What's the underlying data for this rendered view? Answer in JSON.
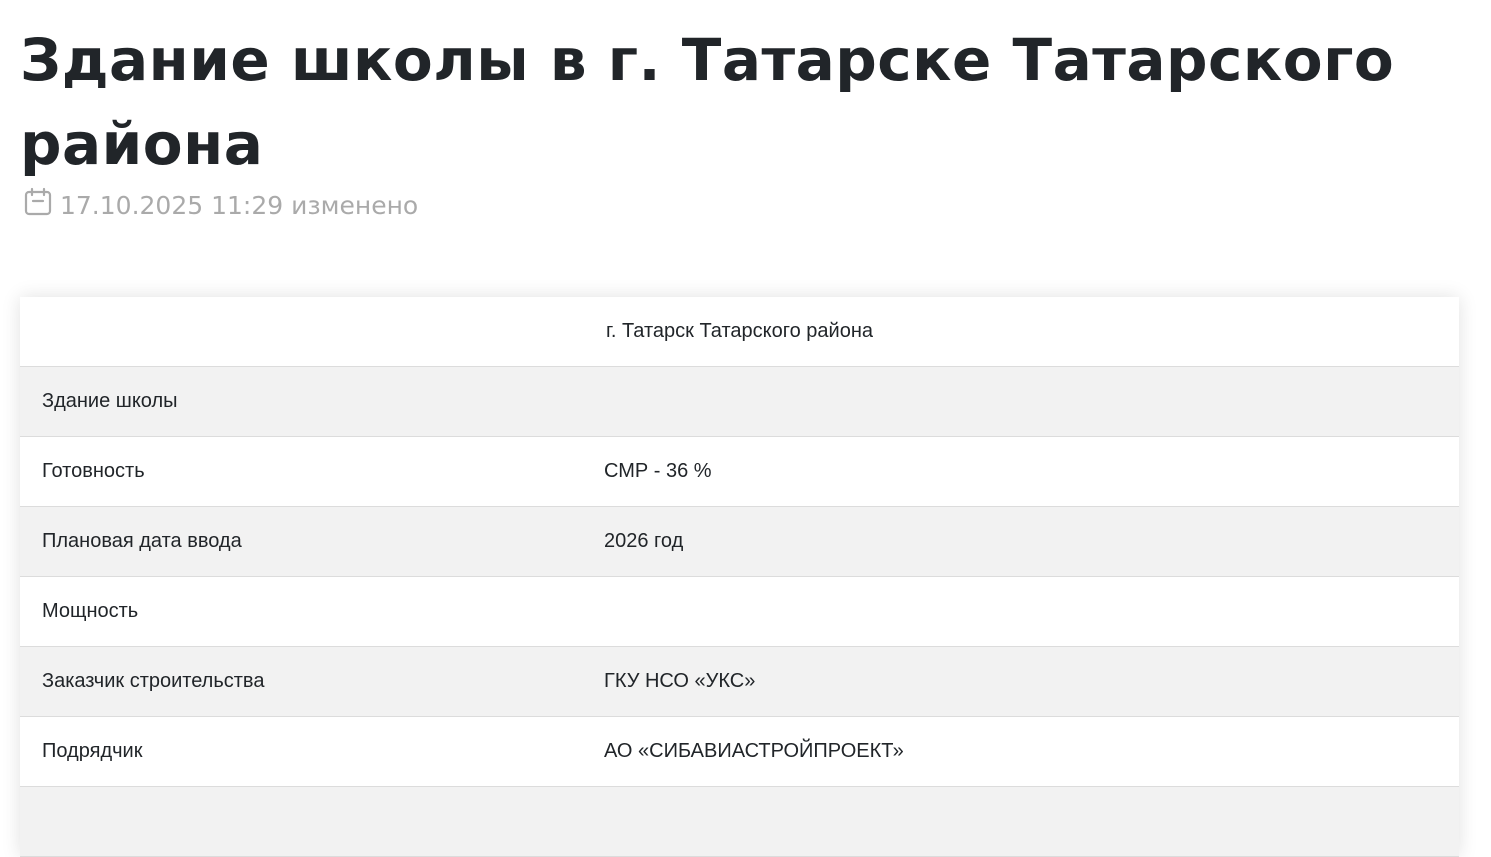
{
  "title": "Здание школы в г. Татарске Татарского района",
  "meta": {
    "date": "17.10.2025 11:29 изменено",
    "icon": "calendar-icon"
  },
  "table": {
    "header": "г. Татарск Татарского района",
    "rows": [
      {
        "label": "Здание школы",
        "value": ""
      },
      {
        "label": "Готовность",
        "value": "СМР - 36 %"
      },
      {
        "label": "Плановая дата ввода",
        "value": "2026 год"
      },
      {
        "label": "Мощность",
        "value": ""
      },
      {
        "label": "Заказчик строительства",
        "value": "ГКУ НСО «УКС»"
      },
      {
        "label": "Подрядчик",
        "value": "АО «СИБАВИАСТРОЙПРОЕКТ»"
      },
      {
        "label": "",
        "value": ""
      }
    ]
  }
}
